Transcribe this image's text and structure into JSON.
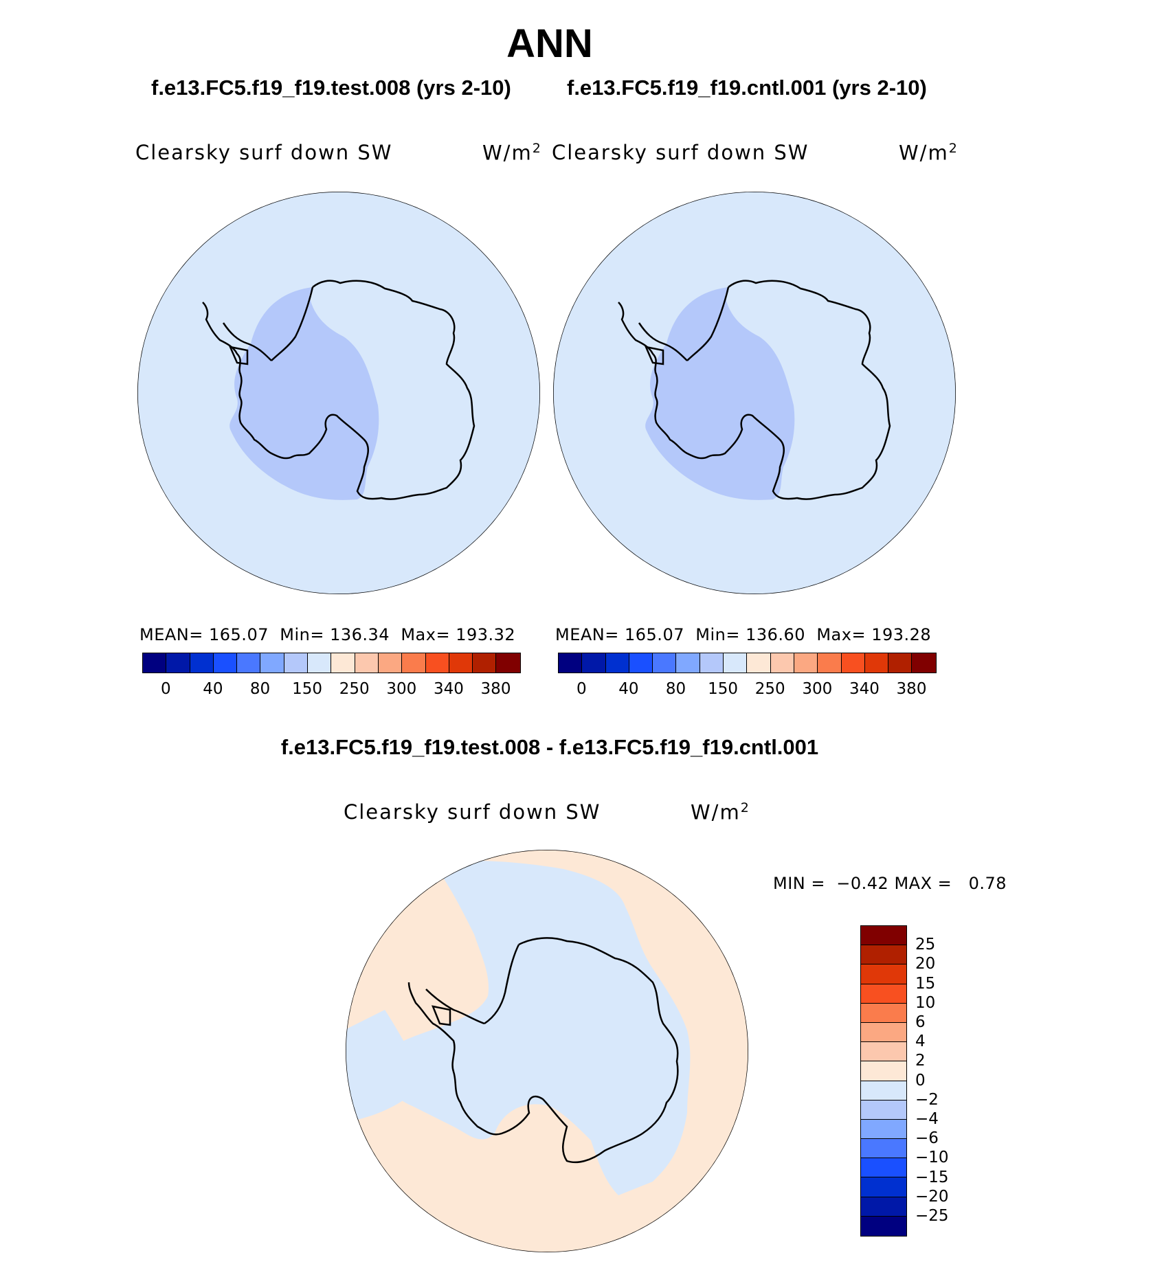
{
  "season": "ANN",
  "test_case": "f.e13.FC5.f19_f19.test.008 (yrs 2-10)",
  "control_case": "f.e13.FC5.f19_f19.cntl.001 (yrs 2-10)",
  "diff_title": "f.e13.FC5.f19_f19.test.008 - f.e13.FC5.f19_f19.cntl.001",
  "panels": [
    {
      "variable": "Clearsky surf down SW",
      "units_base": "W/m",
      "units_exp": "2",
      "mean_label": "MEAN=",
      "mean": "165.07",
      "min_label": "Min=",
      "min": "136.34",
      "max_label": "Max=",
      "max": "193.32"
    },
    {
      "variable": "Clearsky surf down SW",
      "units_base": "W/m",
      "units_exp": "2",
      "mean_label": "MEAN=",
      "mean": "165.07",
      "min_label": "Min=",
      "min": "136.60",
      "max_label": "Max=",
      "max": "193.28"
    }
  ],
  "diff_panel": {
    "variable": "Clearsky surf down SW",
    "units_base": "W/m",
    "units_exp": "2",
    "min_label": "MIN =",
    "min": "−0.42",
    "max_label": "MAX =",
    "max": "0.78"
  },
  "abs_colorbar": {
    "colors": [
      "#000080",
      "#0018a8",
      "#0030d0",
      "#1a50ff",
      "#4a78ff",
      "#80a8ff",
      "#b4c8fa",
      "#d8e8fb",
      "#fde8d6",
      "#fcc8ae",
      "#fba882",
      "#fa7c4c",
      "#f85020",
      "#e03808",
      "#b02000",
      "#800000"
    ],
    "labels": [
      "0",
      "40",
      "80",
      "150",
      "250",
      "300",
      "340",
      "380"
    ]
  },
  "diff_colorbar": {
    "colors": [
      "#800000",
      "#b02000",
      "#e03808",
      "#f85020",
      "#fa7c4c",
      "#fba882",
      "#fcc8ae",
      "#fde8d6",
      "#d8e8fb",
      "#b4c8fa",
      "#80a8ff",
      "#4a78ff",
      "#1a50ff",
      "#0030d0",
      "#0018a8",
      "#000080"
    ],
    "labels": [
      "25",
      "20",
      "15",
      "10",
      "6",
      "4",
      "2",
      "0",
      "−2",
      "−4",
      "−6",
      "−10",
      "−15",
      "−20",
      "−25"
    ]
  },
  "map_colors": {
    "ocean_abs": "#d8e8fb",
    "west_abs": "#b4c8fa",
    "diff_positive": "#fde8d6",
    "diff_negative": "#d8e8fb"
  }
}
